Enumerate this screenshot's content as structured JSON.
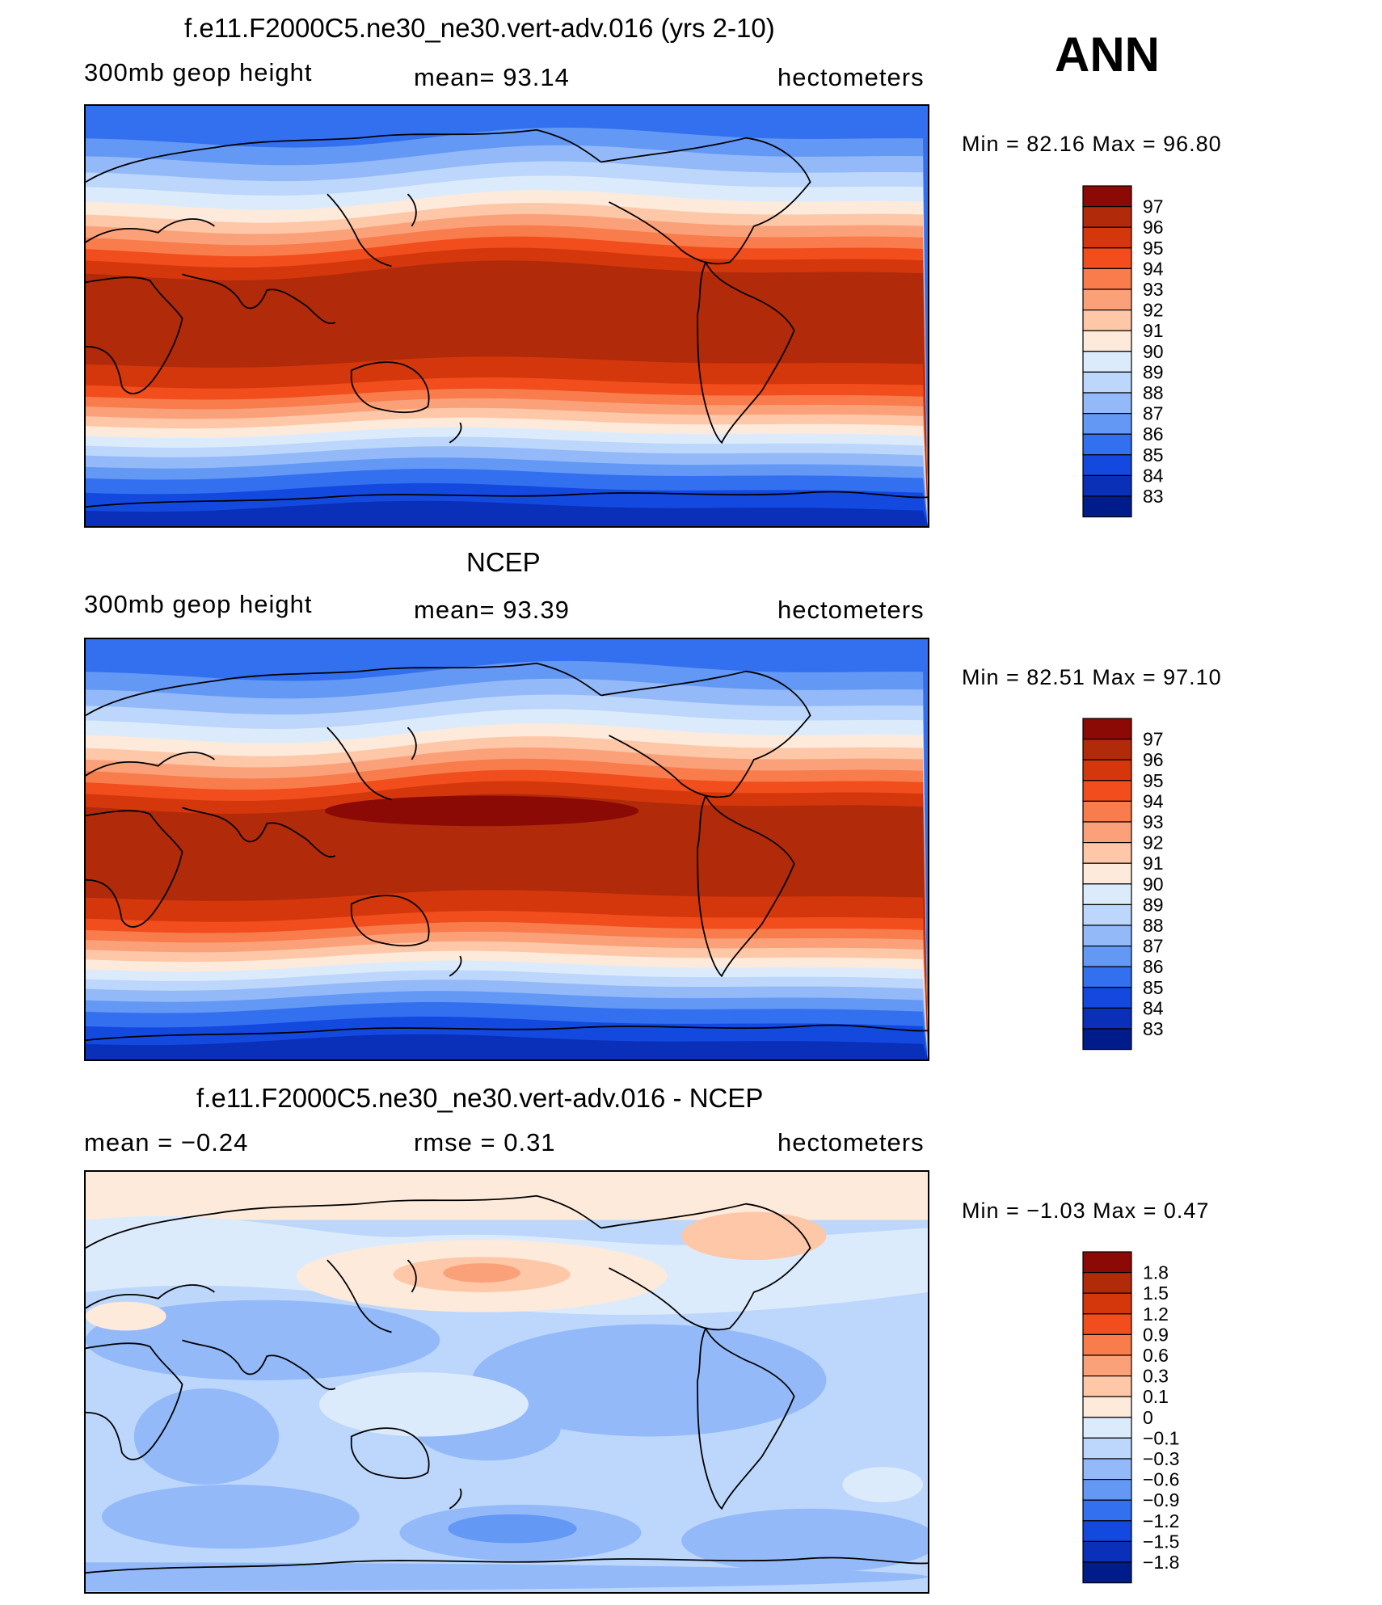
{
  "ann_label": "ANN",
  "panels": [
    {
      "title": "f.e11.F2000C5.ne30_ne30.vert-adv.016 (yrs 2-10)",
      "left_text": "300mb  geop  height",
      "center_text": "mean=   93.14",
      "right_text": "hectometers",
      "minmax": "Min  =     82.16  Max  =     96.80",
      "colorbar_labels": [
        "97",
        "96",
        "95",
        "94",
        "93",
        "92",
        "91",
        "90",
        "89",
        "88",
        "87",
        "86",
        "85",
        "84",
        "83"
      ],
      "colors": [
        "#8c0a05",
        "#b12a0a",
        "#d5370c",
        "#f24d1c",
        "#f97c4c",
        "#fba17a",
        "#fdc7a8",
        "#feeadb",
        "#dcebfb",
        "#bcd7fb",
        "#93b9f9",
        "#6398f5",
        "#3370ef",
        "#1449e0",
        "#0a2fb8",
        "#001b8a"
      ]
    },
    {
      "title": "NCEP",
      "left_text": "300mb  geop  height",
      "center_text": "mean=   93.39",
      "right_text": "hectometers",
      "minmax": "Min  =     82.51  Max  =     97.10",
      "colorbar_labels": [
        "97",
        "96",
        "95",
        "94",
        "93",
        "92",
        "91",
        "90",
        "89",
        "88",
        "87",
        "86",
        "85",
        "84",
        "83"
      ],
      "colors": [
        "#8c0a05",
        "#b12a0a",
        "#d5370c",
        "#f24d1c",
        "#f97c4c",
        "#fba17a",
        "#fdc7a8",
        "#feeadb",
        "#dcebfb",
        "#bcd7fb",
        "#93b9f9",
        "#6398f5",
        "#3370ef",
        "#1449e0",
        "#0a2fb8",
        "#001b8a"
      ]
    },
    {
      "title": "f.e11.F2000C5.ne30_ne30.vert-adv.016 - NCEP",
      "left_text": "mean  =    −0.24",
      "center_text": "rmse  =      0.31",
      "right_text": "hectometers",
      "minmax": "Min  =    −1.03  Max  =      0.47",
      "colorbar_labels": [
        "1.8",
        "1.5",
        "1.2",
        "0.9",
        "0.6",
        "0.3",
        "0.1",
        "0",
        "−0.1",
        "−0.3",
        "−0.6",
        "−0.9",
        "−1.2",
        "−1.5",
        "−1.8"
      ],
      "colors": [
        "#8c0a05",
        "#b12a0a",
        "#d5370c",
        "#f24d1c",
        "#f97c4c",
        "#fba17a",
        "#fdc7a8",
        "#feeadb",
        "#dcebfb",
        "#bcd7fb",
        "#93b9f9",
        "#6398f5",
        "#3370ef",
        "#1449e0",
        "#0a2fb8",
        "#001b8a"
      ]
    }
  ]
}
